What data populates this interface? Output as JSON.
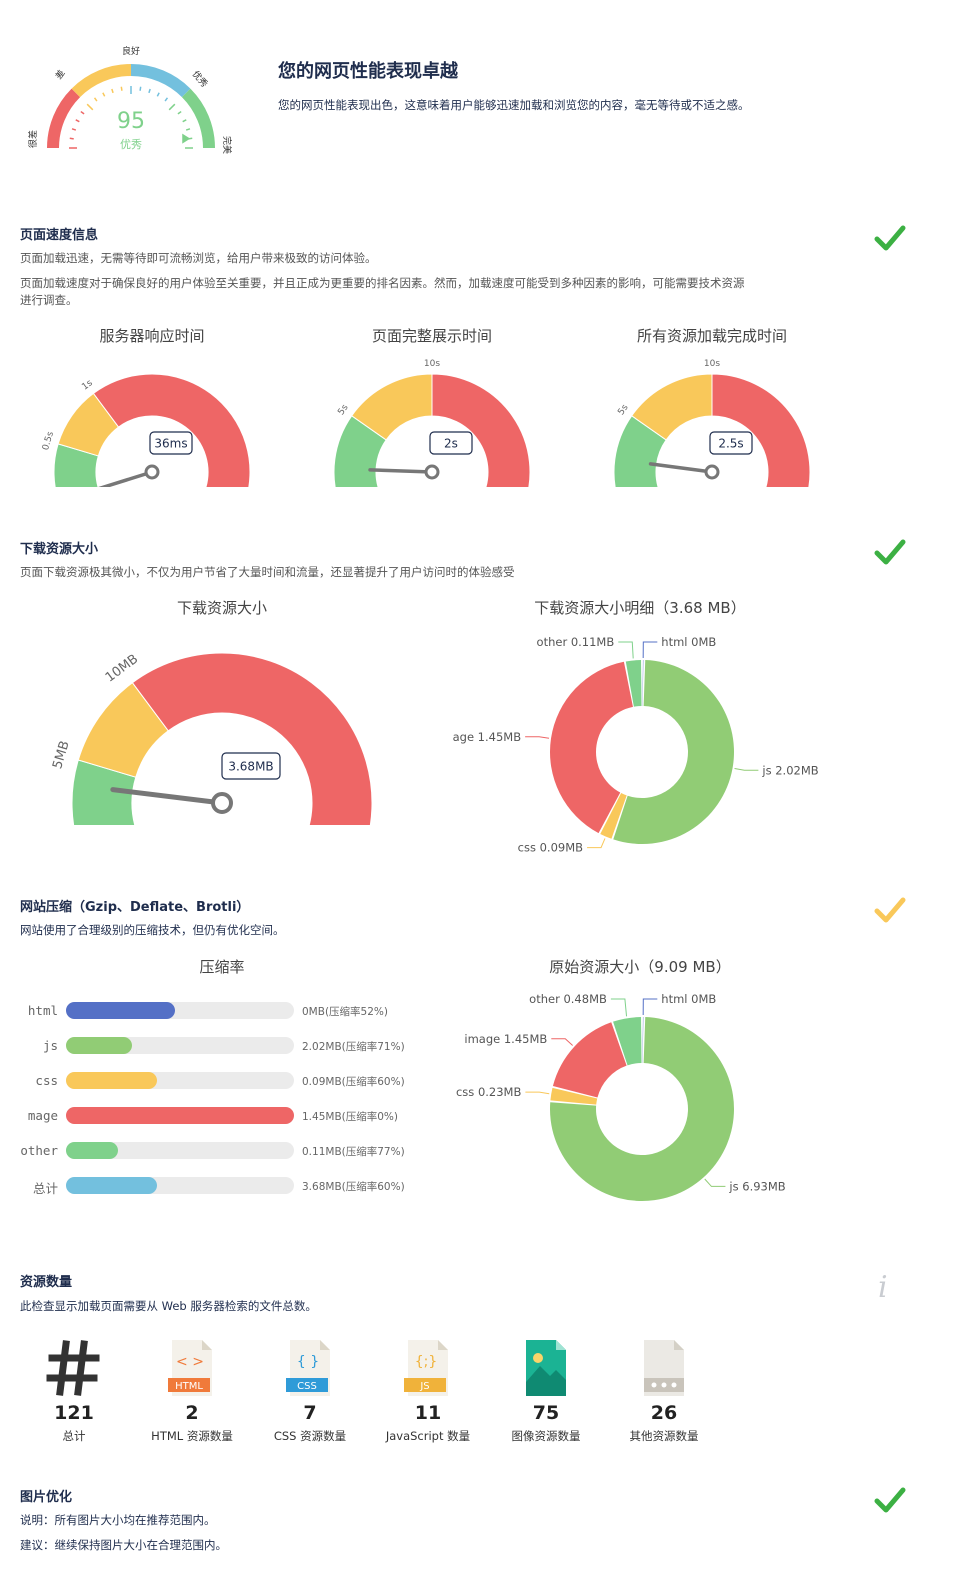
{
  "summary": {
    "score": "95",
    "score_label": "优秀",
    "gauge_labels": [
      "很差",
      "差",
      "良好",
      "优秀",
      "完美"
    ],
    "title": "您的网页性能表现卓越",
    "description": "您的网页性能表现出色，这意味着用户能够迅速加载和浏览您的内容，毫无等待或不适之感。"
  },
  "speed": {
    "title": "页面速度信息",
    "line1": "页面加载迅速，无需等待即可流畅浏览，给用户带来极致的访问体验。",
    "line2": "页面加载速度对于确保良好的用户体验至关重要，并且正成为更重要的排名因素。然而，加载速度可能受到多种因素的影响，可能需要技术资源",
    "line3": "进行调查。",
    "status": "pass",
    "gauges": [
      {
        "title": "服务器响应时间",
        "ticks": [
          "0ms",
          "0.5s",
          "1s",
          "3s"
        ],
        "value_label": "36ms",
        "value": 0.036,
        "stops": [
          0,
          0.5,
          1,
          3
        ]
      },
      {
        "title": "页面完整展示时间",
        "ticks": [
          "0s",
          "5s",
          "10s",
          "20s"
        ],
        "value_label": "2s",
        "value": 2,
        "stops": [
          0,
          5,
          10,
          20
        ]
      },
      {
        "title": "所有资源加载完成时间",
        "ticks": [
          "0s",
          "5s",
          "10s",
          "20s"
        ],
        "value_label": "2.5s",
        "value": 2.5,
        "stops": [
          0,
          5,
          10,
          20
        ]
      }
    ]
  },
  "download": {
    "title": "下载资源大小",
    "desc": "页面下载资源极其微小，不仅为用户节省了大量时间和流量，还显著提升了用户访问时的体验感受",
    "status": "pass",
    "gauge": {
      "title": "下载资源大小",
      "ticks": [
        "0MB",
        "5MB",
        "10MB",
        "30MB"
      ],
      "value_label": "3.68MB",
      "value": 3.68,
      "stops": [
        0,
        5,
        10,
        30
      ]
    },
    "donut_title": "下载资源大小明细（3.68 MB）"
  },
  "compression": {
    "title": "网站压缩（Gzip、Deflate、Brotli）",
    "desc": "网站使用了合理级别的压缩技术，但仍有优化空间。",
    "status": "warn",
    "bar_title": "压缩率",
    "donut_title": "原始资源大小（9.09 MB）"
  },
  "resources": {
    "title": "资源数量",
    "desc": "此检查显示加载页面需要从 Web 服务器检索的文件总数。",
    "items": [
      {
        "icon": "hash-icon",
        "count": "121",
        "label": "总计"
      },
      {
        "icon": "html-file-icon",
        "badge": "HTML",
        "glyph": "< >",
        "count": "2",
        "label": "HTML 资源数量"
      },
      {
        "icon": "css-file-icon",
        "badge": "CSS",
        "glyph": "{ }",
        "count": "7",
        "label": "CSS 资源数量"
      },
      {
        "icon": "js-file-icon",
        "badge": "JS",
        "glyph": "{;}",
        "count": "11",
        "label": "JavaScript 数量"
      },
      {
        "icon": "image-file-icon",
        "count": "75",
        "label": "图像资源数量"
      },
      {
        "icon": "other-file-icon",
        "count": "26",
        "label": "其他资源数量"
      }
    ]
  },
  "image_opt": {
    "title": "图片优化",
    "line1": "说明：所有图片大小均在推荐范围内。",
    "line2": "建议：继续保持图片大小在合理范围内。",
    "status": "pass"
  },
  "colors": {
    "green": "#7fd18b",
    "yellow": "#f9c85a",
    "red": "#ee6666",
    "blue": "#5470c6",
    "lightgreen": "#91cc75",
    "sky": "#73c0de",
    "title": "#1f2d4d"
  },
  "chart_data": [
    {
      "type": "pie",
      "title": "下载资源大小明细（3.68 MB）",
      "labels": [
        "html 0MB",
        "js 2.02MB",
        "css 0.09MB",
        "age 1.45MB",
        "other 0.11MB"
      ],
      "values": [
        0.004,
        2.02,
        0.09,
        1.45,
        0.11
      ],
      "colors": [
        "#5470c6",
        "#91cc75",
        "#f9c85a",
        "#ee6666",
        "#7fd18b"
      ]
    },
    {
      "type": "bar",
      "title": "压缩率",
      "categories": [
        "html",
        "js",
        "css",
        "mage",
        "other",
        "总计"
      ],
      "values": [
        52,
        71,
        60,
        0,
        77,
        60
      ],
      "fill": [
        0.48,
        0.29,
        0.4,
        1.0,
        0.23,
        0.4
      ],
      "value_labels": [
        "0MB(压缩率52%)",
        "2.02MB(压缩率71%)",
        "0.09MB(压缩率60%)",
        "1.45MB(压缩率0%)",
        "0.11MB(压缩率77%)",
        "3.68MB(压缩率60%)"
      ],
      "colors": [
        "#5470c6",
        "#91cc75",
        "#f9c85a",
        "#ee6666",
        "#7fd18b",
        "#73c0de"
      ]
    },
    {
      "type": "pie",
      "title": "原始资源大小（9.09 MB）",
      "labels": [
        "html 0MB",
        "js 6.93MB",
        "css 0.23MB",
        "image 1.45MB",
        "other 0.48MB"
      ],
      "values": [
        0.004,
        6.93,
        0.23,
        1.45,
        0.48
      ],
      "colors": [
        "#5470c6",
        "#91cc75",
        "#f9c85a",
        "#ee6666",
        "#7fd18b"
      ]
    }
  ]
}
